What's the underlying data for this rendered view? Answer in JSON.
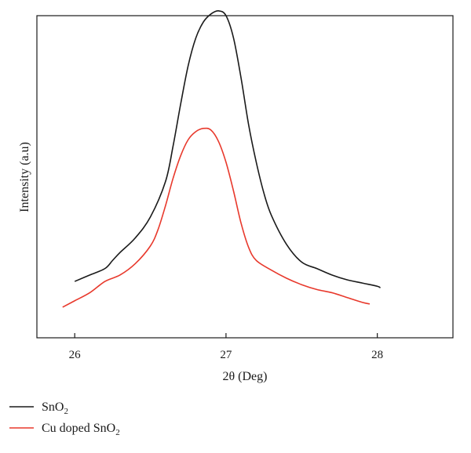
{
  "chart_data": {
    "type": "line",
    "xlabel": "2θ (Deg)",
    "ylabel": "Intensity (a.u)",
    "xlim": [
      25.75,
      28.5
    ],
    "ylim": [
      0,
      100
    ],
    "xticks": [
      26,
      27,
      28
    ],
    "grid": false,
    "legend_position": "bottom-left",
    "series": [
      {
        "legend": {
          "main": "SnO",
          "sub": "2",
          "post": ""
        },
        "color": "#1a1a1a",
        "x": [
          26.0,
          26.1,
          26.2,
          26.25,
          26.3,
          26.4,
          26.5,
          26.6,
          26.65,
          26.7,
          26.75,
          26.8,
          26.85,
          26.9,
          26.95,
          27.0,
          27.05,
          27.1,
          27.15,
          27.2,
          27.25,
          27.3,
          27.4,
          27.5,
          27.6,
          27.7,
          27.8,
          27.9,
          28.0,
          28.02
        ],
        "y": [
          17.5,
          19.5,
          21.5,
          24.0,
          26.5,
          31.0,
          37.5,
          48.5,
          59.5,
          72.5,
          84.5,
          93.0,
          98.0,
          100.5,
          101.5,
          100.0,
          93.0,
          80.5,
          66.0,
          54.5,
          45.0,
          38.0,
          29.0,
          23.5,
          21.5,
          19.5,
          18.0,
          17.0,
          16.0,
          15.5
        ]
      },
      {
        "legend": {
          "main": "Cu doped SnO",
          "sub": "2",
          "post": ""
        },
        "color": "#e8392c",
        "x": [
          25.92,
          26.0,
          26.1,
          26.2,
          26.3,
          26.4,
          26.5,
          26.55,
          26.6,
          26.65,
          26.7,
          26.75,
          26.8,
          26.85,
          26.9,
          26.95,
          27.0,
          27.05,
          27.1,
          27.15,
          27.2,
          27.3,
          27.4,
          27.5,
          27.6,
          27.7,
          27.8,
          27.9,
          27.95
        ],
        "y": [
          9.5,
          11.5,
          14.0,
          17.5,
          19.5,
          23.0,
          28.5,
          33.5,
          41.0,
          49.5,
          56.5,
          61.5,
          64.0,
          65.0,
          64.5,
          61.0,
          54.5,
          45.5,
          35.5,
          28.0,
          24.0,
          21.0,
          18.5,
          16.5,
          15.0,
          14.0,
          12.5,
          11.0,
          10.5
        ]
      }
    ]
  }
}
